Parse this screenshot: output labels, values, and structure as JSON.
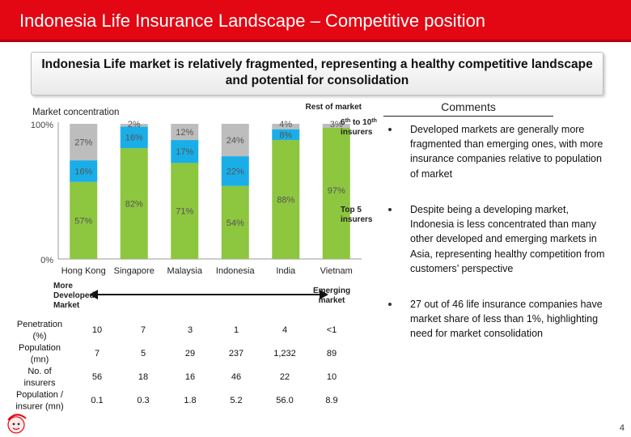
{
  "header": {
    "title": "Indonesia Life Insurance Landscape – Competitive position"
  },
  "subtitle": "Indonesia Life market is relatively fragmented, representing a healthy competitive landscape and potential for consolidation",
  "chart_data": {
    "type": "bar",
    "stacked": true,
    "title": "Market concentration",
    "categories": [
      "Hong Kong",
      "Singapore",
      "Malaysia",
      "Indonesia",
      "India",
      "Vietnam"
    ],
    "series": [
      {
        "name": "Top 5 insurers",
        "color": "#8dc63f",
        "values": [
          57,
          82,
          71,
          54,
          88,
          97
        ],
        "labels": [
          "57%",
          "82%",
          "71%",
          "54%",
          "88%",
          "97%"
        ]
      },
      {
        "name": "6th to 10th insurers",
        "color": "#1aaee8",
        "values": [
          16,
          16,
          17,
          22,
          8,
          0
        ],
        "labels": [
          "16%",
          "16%",
          "17%",
          "22%",
          "8%",
          ""
        ]
      },
      {
        "name": "Rest of market",
        "color": "#bdbdbd",
        "values": [
          27,
          2,
          12,
          24,
          4,
          3
        ],
        "labels": [
          "27%",
          "2%",
          "12%",
          "24%",
          "4%",
          "3%"
        ]
      }
    ],
    "ylim": [
      0,
      100
    ],
    "y_ticks": [
      "0%",
      "100%"
    ],
    "annotations": {
      "rest": "Rest of market",
      "sixth_prefix": "6",
      "sixth_sup1": "th",
      "sixth_mid": " to 10",
      "sixth_sup2": "th",
      "sixth_line2": "insurers",
      "top5_line1": "Top 5",
      "top5_line2": "insurers"
    },
    "arrow": {
      "left_label": [
        "More",
        "Developed",
        "Market"
      ],
      "right_label": [
        "Emerging",
        "market"
      ]
    },
    "table": {
      "rows": [
        {
          "label": [
            "Penetration",
            "(%)"
          ],
          "values": [
            "10",
            "7",
            "3",
            "1",
            "4",
            "<1"
          ]
        },
        {
          "label": [
            "Population",
            "(mn)"
          ],
          "values": [
            "7",
            "5",
            "29",
            "237",
            "1,232",
            "89"
          ]
        },
        {
          "label": [
            "No. of",
            "insurers"
          ],
          "values": [
            "56",
            "18",
            "16",
            "46",
            "22",
            "10"
          ]
        },
        {
          "label": [
            "Population /",
            "insurer (mn)"
          ],
          "values": [
            "0.1",
            "0.3",
            "1.8",
            "5.2",
            "56.0",
            "8.9"
          ]
        }
      ]
    }
  },
  "comments": {
    "heading": "Comments",
    "items": [
      "Developed markets are generally more fragmented than emerging ones, with more insurance companies relative to population of market",
      "Despite being a developing market, Indonesia is less concentrated than many other developed and emerging markets in Asia, representing healthy competition from customers’ perspective",
      "27 out of 46 life insurance companies have market share of less than 1%, highlighting need for market consolidation"
    ]
  },
  "footer": {
    "page_number": "4"
  }
}
